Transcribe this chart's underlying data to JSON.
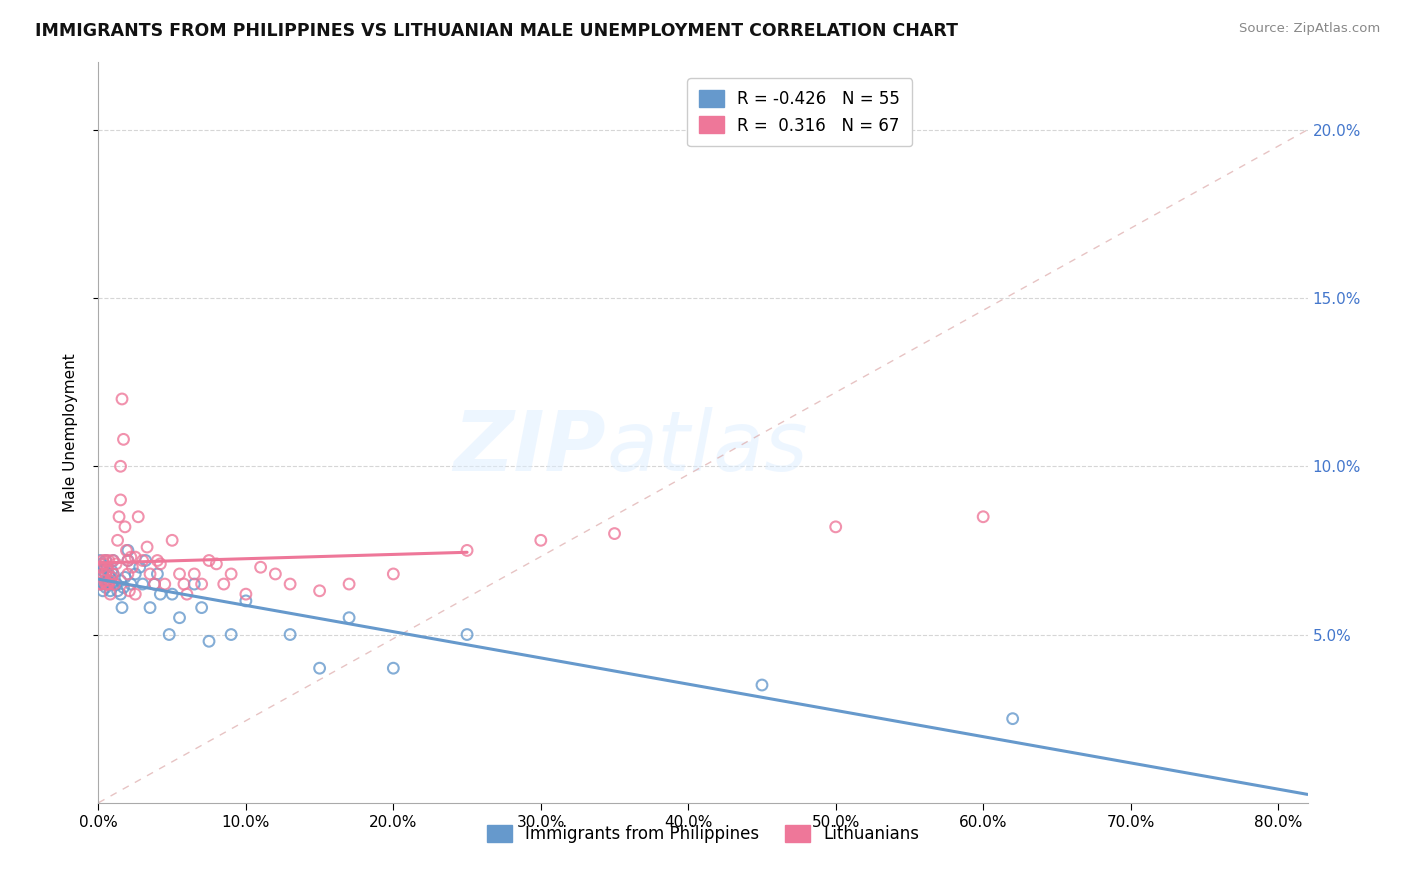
{
  "title": "IMMIGRANTS FROM PHILIPPINES VS LITHUANIAN MALE UNEMPLOYMENT CORRELATION CHART",
  "source": "Source: ZipAtlas.com",
  "xtick_vals": [
    0.0,
    0.1,
    0.2,
    0.3,
    0.4,
    0.5,
    0.6,
    0.7,
    0.8
  ],
  "xtick_labels": [
    "0.0%",
    "10.0%",
    "20.0%",
    "30.0%",
    "40.0%",
    "50.0%",
    "60.0%",
    "70.0%",
    "80.0%"
  ],
  "ytick_vals": [
    0.05,
    0.1,
    0.15,
    0.2
  ],
  "ytick_labels": [
    "5.0%",
    "10.0%",
    "15.0%",
    "20.0%"
  ],
  "xlim": [
    0.0,
    0.82
  ],
  "ylim": [
    0.0,
    0.22
  ],
  "blue_color": "#6699cc",
  "pink_color": "#ee7799",
  "R1": -0.426,
  "N1": 55,
  "R2": 0.316,
  "N2": 67,
  "ylabel": "Male Unemployment",
  "legend1_label": "Immigrants from Philippines",
  "legend2_label": "Lithuanians",
  "blue_x": [
    0.001,
    0.001,
    0.001,
    0.002,
    0.002,
    0.003,
    0.003,
    0.004,
    0.004,
    0.005,
    0.005,
    0.005,
    0.006,
    0.006,
    0.007,
    0.007,
    0.008,
    0.008,
    0.009,
    0.009,
    0.01,
    0.01,
    0.012,
    0.013,
    0.015,
    0.015,
    0.016,
    0.017,
    0.018,
    0.02,
    0.02,
    0.022,
    0.025,
    0.028,
    0.03,
    0.032,
    0.035,
    0.038,
    0.04,
    0.042,
    0.048,
    0.05,
    0.055,
    0.065,
    0.07,
    0.075,
    0.09,
    0.1,
    0.13,
    0.15,
    0.17,
    0.2,
    0.25,
    0.45,
    0.62
  ],
  "blue_y": [
    0.065,
    0.068,
    0.072,
    0.067,
    0.071,
    0.063,
    0.069,
    0.065,
    0.07,
    0.064,
    0.068,
    0.072,
    0.066,
    0.07,
    0.065,
    0.068,
    0.063,
    0.067,
    0.065,
    0.069,
    0.068,
    0.072,
    0.065,
    0.063,
    0.066,
    0.062,
    0.058,
    0.064,
    0.067,
    0.072,
    0.075,
    0.065,
    0.068,
    0.07,
    0.065,
    0.072,
    0.058,
    0.065,
    0.068,
    0.062,
    0.05,
    0.062,
    0.055,
    0.065,
    0.058,
    0.048,
    0.05,
    0.06,
    0.05,
    0.04,
    0.055,
    0.04,
    0.05,
    0.035,
    0.025
  ],
  "pink_x": [
    0.001,
    0.001,
    0.002,
    0.002,
    0.003,
    0.003,
    0.004,
    0.004,
    0.005,
    0.005,
    0.005,
    0.006,
    0.006,
    0.007,
    0.007,
    0.008,
    0.008,
    0.009,
    0.01,
    0.01,
    0.011,
    0.012,
    0.013,
    0.014,
    0.015,
    0.015,
    0.016,
    0.017,
    0.018,
    0.019,
    0.02,
    0.02,
    0.021,
    0.022,
    0.023,
    0.025,
    0.025,
    0.027,
    0.03,
    0.033,
    0.035,
    0.038,
    0.04,
    0.042,
    0.045,
    0.05,
    0.055,
    0.058,
    0.06,
    0.065,
    0.07,
    0.075,
    0.08,
    0.085,
    0.09,
    0.1,
    0.11,
    0.12,
    0.13,
    0.15,
    0.17,
    0.2,
    0.25,
    0.3,
    0.35,
    0.5,
    0.6
  ],
  "pink_y": [
    0.065,
    0.07,
    0.065,
    0.07,
    0.068,
    0.072,
    0.066,
    0.071,
    0.065,
    0.068,
    0.072,
    0.065,
    0.069,
    0.065,
    0.072,
    0.062,
    0.066,
    0.067,
    0.068,
    0.072,
    0.065,
    0.071,
    0.078,
    0.085,
    0.09,
    0.1,
    0.12,
    0.108,
    0.082,
    0.075,
    0.068,
    0.072,
    0.063,
    0.073,
    0.07,
    0.073,
    0.062,
    0.085,
    0.072,
    0.076,
    0.068,
    0.065,
    0.072,
    0.071,
    0.065,
    0.078,
    0.068,
    0.065,
    0.062,
    0.068,
    0.065,
    0.072,
    0.071,
    0.065,
    0.068,
    0.062,
    0.07,
    0.068,
    0.065,
    0.063,
    0.065,
    0.068,
    0.075,
    0.078,
    0.08,
    0.082,
    0.085
  ],
  "diag_line_color": "#cc8899",
  "grid_color": "#cccccc"
}
